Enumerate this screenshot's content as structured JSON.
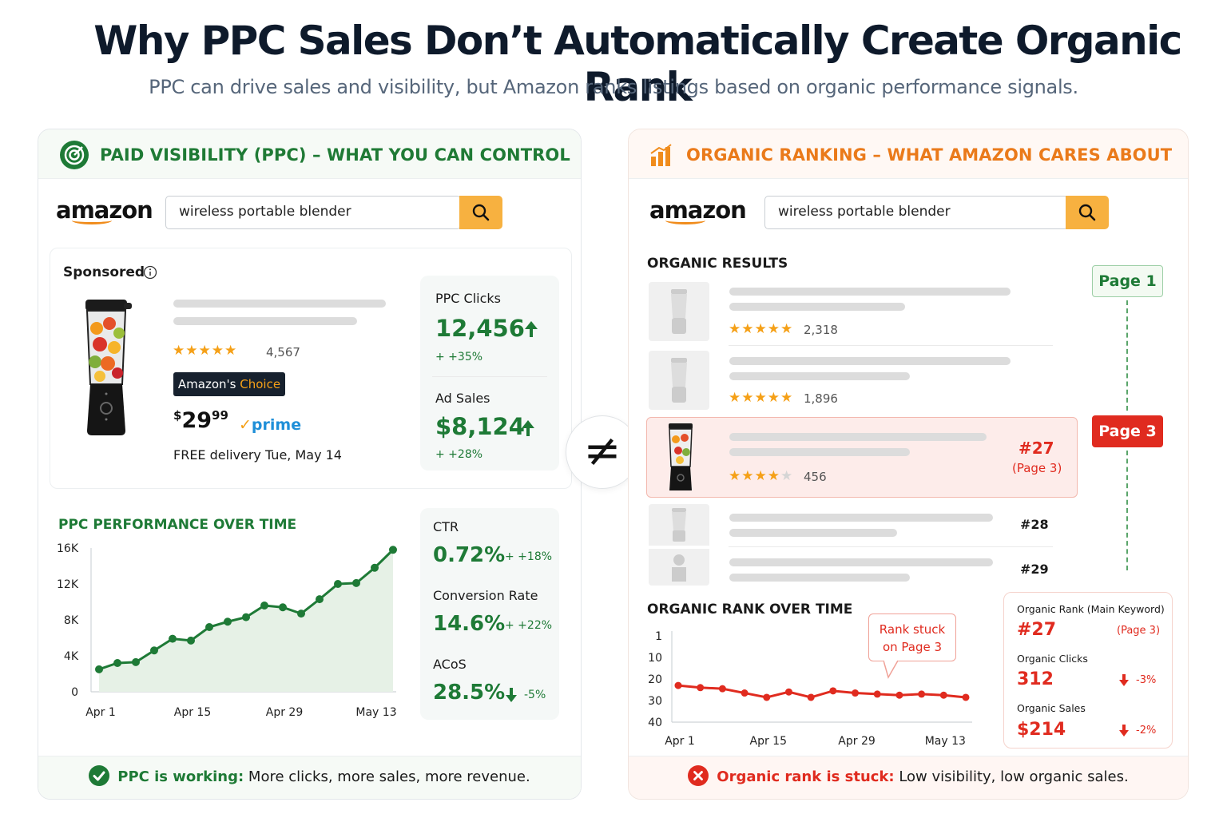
{
  "title": "Why PPC Sales Don’t Automatically Create Organic Rank",
  "subtitle": "PPC can drive sales and visibility, but Amazon ranks listings based on organic performance signals.",
  "not_equal_symbol": "≠",
  "colors": {
    "green": "#1e7a36",
    "orange": "#ea7a1a",
    "red": "#e02b1f",
    "search_button": "#f7b140"
  },
  "left": {
    "header": "PAID VISIBILITY (PPC) – WHAT YOU CAN CONTROL",
    "header_icon": "target-icon",
    "logo": "amazon",
    "search_value": "wireless portable blender",
    "sponsored_label": "Sponsored",
    "product": {
      "rating_count": "4,567",
      "badge_a": "Amazon's",
      "badge_b": "Choice",
      "price_symbol": "$",
      "price_whole": "29",
      "price_fraction": "99",
      "prime": "prime",
      "delivery": "FREE delivery Tue, May 14"
    },
    "stats_top": [
      {
        "label": "PPC Clicks",
        "value": "12,456",
        "change": "+ +35%"
      },
      {
        "label": "Ad Sales",
        "value": "$8,124",
        "change": "+ +28%"
      }
    ],
    "chart_title": "PPC PERFORMANCE OVER TIME",
    "stats_bottom": [
      {
        "label": "CTR",
        "value": "0.72%",
        "change": "+ +18%"
      },
      {
        "label": "Conversion Rate",
        "value": "14.6%",
        "change": "+ +22%"
      },
      {
        "label": "ACoS",
        "value": "28.5%",
        "change": "-5%"
      }
    ],
    "footer_bold": "PPC is working:",
    "footer_text": " More clicks, more sales, more revenue."
  },
  "right": {
    "header": "ORGANIC RANKING – WHAT AMAZON CARES ABOUT",
    "header_icon": "bar-chart-icon",
    "logo": "amazon",
    "search_value": "wireless portable blender",
    "results_title": "ORGANIC RESULTS",
    "results": [
      {
        "rating_count": "2,318"
      },
      {
        "rating_count": "1,896"
      },
      {
        "rating_count": "456",
        "rank": "#27",
        "page_note": "(Page 3)"
      },
      {
        "rank": "#28"
      },
      {
        "rank": "#29"
      }
    ],
    "page1_label": "Page 1",
    "page3_label": "Page 3",
    "chart_title": "ORGANIC RANK OVER TIME",
    "callout": [
      "Rank stuck",
      "on Page 3"
    ],
    "metrics": {
      "rank_label": "Organic Rank (Main Keyword)",
      "rank_value": "#27",
      "rank_page": "(Page 3)",
      "clicks_label": "Organic Clicks",
      "clicks_value": "312",
      "clicks_change": "-3%",
      "sales_label": "Organic Sales",
      "sales_value": "$214",
      "sales_change": "-2%"
    },
    "footer_bold": "Organic rank is stuck:",
    "footer_text": " Low visibility, low organic sales."
  },
  "chart_data": [
    {
      "type": "area",
      "title": "PPC PERFORMANCE OVER TIME",
      "x_tick_labels": [
        "Apr 1",
        "Apr 15",
        "Apr 29",
        "May 13"
      ],
      "y_tick_labels": [
        "0",
        "4K",
        "8K",
        "12K",
        "16K"
      ],
      "ylim": [
        0,
        16000
      ],
      "x_index": [
        0,
        1,
        2,
        3,
        4,
        5,
        6,
        7,
        8,
        9,
        10,
        11,
        12,
        13,
        14,
        15,
        16
      ],
      "values": [
        2500,
        3200,
        3300,
        4600,
        5900,
        5700,
        7200,
        7800,
        8300,
        9600,
        9400,
        8700,
        10300,
        12000,
        12100,
        13800,
        15800
      ],
      "grid": false
    },
    {
      "type": "line",
      "title": "ORGANIC RANK OVER TIME",
      "x_tick_labels": [
        "Apr 1",
        "Apr 15",
        "Apr 29",
        "May 13"
      ],
      "y_tick_labels": [
        "1",
        "10",
        "20",
        "30",
        "40"
      ],
      "y_inverted": true,
      "x_index": [
        0,
        1,
        2,
        3,
        4,
        5,
        6,
        7,
        8,
        9,
        10,
        11,
        12,
        13
      ],
      "values": [
        23,
        24,
        24.5,
        26.5,
        28.5,
        26,
        28.5,
        25.5,
        26.5,
        27,
        27.5,
        27,
        27.5,
        28.5
      ],
      "grid": false
    }
  ]
}
